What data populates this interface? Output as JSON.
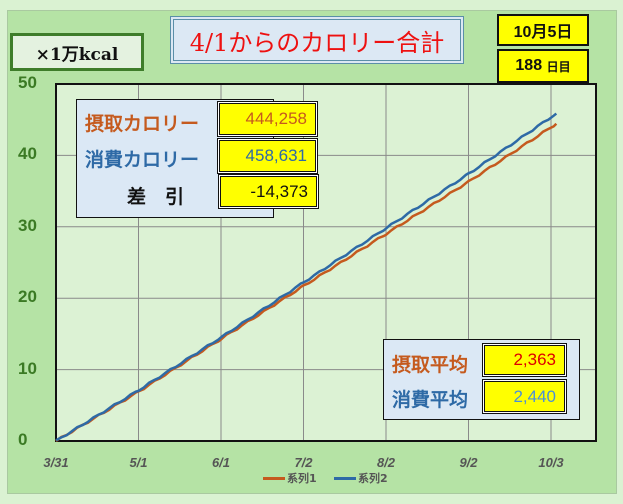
{
  "unit_label": "×1万kcal",
  "title": "4/1からのカロリー合計",
  "date": "10月5日",
  "day_count": "188",
  "day_suffix": "日目",
  "summary": {
    "intake_label": "摂取カロリー",
    "intake_value": "444,258",
    "burn_label": "消費カロリー",
    "burn_value": "458,631",
    "diff_label": "差　引",
    "diff_value": "-14,373"
  },
  "averages": {
    "intake_label": "摂取平均",
    "intake_value": "2,363",
    "burn_label": "消費平均",
    "burn_value": "2,440"
  },
  "colors": {
    "series1": "#c55a1e",
    "series2": "#2e6aa6"
  },
  "chart_data": {
    "type": "line",
    "xlabel": "",
    "ylabel": "×1万kcal",
    "x_ticks": [
      "3/31",
      "5/1",
      "6/1",
      "7/2",
      "8/2",
      "9/2",
      "10/3"
    ],
    "x_tick_days": [
      0,
      31,
      62,
      93,
      124,
      155,
      186
    ],
    "xlim": [
      0,
      186
    ],
    "ylim": [
      0,
      50
    ],
    "y_ticks": [
      0,
      10,
      20,
      30,
      40,
      50
    ],
    "grid": true,
    "legend": "bottom",
    "x_days": [
      0,
      31,
      62,
      93,
      124,
      155,
      188
    ],
    "series": [
      {
        "name": "系列1",
        "values": [
          0,
          6.9,
          14.3,
          21.7,
          29.0,
          36.3,
          44.43
        ]
      },
      {
        "name": "系列2",
        "values": [
          0,
          7.1,
          14.5,
          22.2,
          29.8,
          37.4,
          45.86
        ]
      }
    ]
  }
}
